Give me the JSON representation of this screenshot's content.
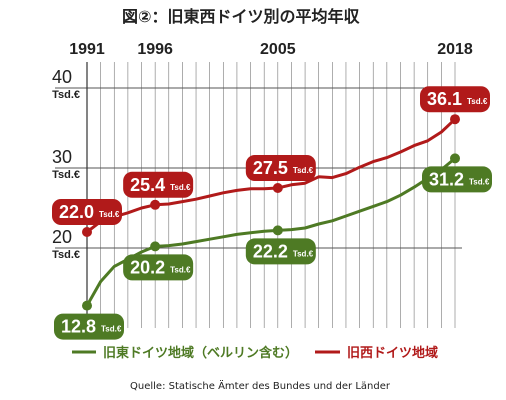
{
  "title": "図②：旧東西ドイツ別の平均年収",
  "source": "Quelle: Statische Ämter des Bundes und der Länder",
  "colors": {
    "west": "#b11a1a",
    "east": "#4e7a24",
    "grid": "#555555"
  },
  "chart_data": {
    "type": "line",
    "title": "図②：旧東西ドイツ別の平均年収",
    "xlim": [
      1991,
      2018
    ],
    "ylim": [
      12,
      40
    ],
    "x_labels": [
      1991,
      1996,
      2005,
      2018
    ],
    "y_ticks": [
      {
        "value": 40,
        "label": "40",
        "unit": "Tsd.€"
      },
      {
        "value": 30,
        "label": "30",
        "unit": "Tsd.€"
      },
      {
        "value": 20,
        "label": "20",
        "unit": "Tsd.€"
      }
    ],
    "legend_position": "bottom",
    "series": [
      {
        "name": "旧西ドイツ地域",
        "key": "west",
        "points": [
          [
            1991,
            22.0
          ],
          [
            1992,
            23.3
          ],
          [
            1993,
            23.9
          ],
          [
            1994,
            24.4
          ],
          [
            1995,
            25.0
          ],
          [
            1996,
            25.4
          ],
          [
            1997,
            25.5
          ],
          [
            1998,
            25.8
          ],
          [
            1999,
            26.1
          ],
          [
            2000,
            26.5
          ],
          [
            2001,
            26.9
          ],
          [
            2002,
            27.2
          ],
          [
            2003,
            27.4
          ],
          [
            2004,
            27.4
          ],
          [
            2005,
            27.5
          ],
          [
            2006,
            27.9
          ],
          [
            2007,
            28.1
          ],
          [
            2008,
            28.9
          ],
          [
            2009,
            28.8
          ],
          [
            2010,
            29.3
          ],
          [
            2011,
            30.1
          ],
          [
            2012,
            30.8
          ],
          [
            2013,
            31.3
          ],
          [
            2014,
            32.0
          ],
          [
            2015,
            32.8
          ],
          [
            2016,
            33.4
          ],
          [
            2017,
            34.5
          ],
          [
            2018,
            36.1
          ]
        ],
        "labels": [
          {
            "x": 1991,
            "y": 22.0,
            "value": "22.0",
            "unit": "Tsd.€"
          },
          {
            "x": 1996,
            "y": 25.4,
            "value": "25.4",
            "unit": "Tsd.€"
          },
          {
            "x": 2005,
            "y": 27.5,
            "value": "27.5",
            "unit": "Tsd.€"
          },
          {
            "x": 2018,
            "y": 36.1,
            "value": "36.1",
            "unit": "Tsd.€"
          }
        ]
      },
      {
        "name": "旧東ドイツ地域（ベルリン含む）",
        "key": "east",
        "points": [
          [
            1991,
            12.8
          ],
          [
            1992,
            15.8
          ],
          [
            1993,
            17.7
          ],
          [
            1994,
            18.6
          ],
          [
            1995,
            19.5
          ],
          [
            1996,
            20.2
          ],
          [
            1997,
            20.3
          ],
          [
            1998,
            20.5
          ],
          [
            1999,
            20.8
          ],
          [
            2000,
            21.1
          ],
          [
            2001,
            21.4
          ],
          [
            2002,
            21.7
          ],
          [
            2003,
            21.9
          ],
          [
            2004,
            22.1
          ],
          [
            2005,
            22.2
          ],
          [
            2006,
            22.3
          ],
          [
            2007,
            22.5
          ],
          [
            2008,
            23.0
          ],
          [
            2009,
            23.4
          ],
          [
            2010,
            24.0
          ],
          [
            2011,
            24.6
          ],
          [
            2012,
            25.2
          ],
          [
            2013,
            25.8
          ],
          [
            2014,
            26.6
          ],
          [
            2015,
            27.6
          ],
          [
            2016,
            28.7
          ],
          [
            2017,
            29.8
          ],
          [
            2018,
            31.2
          ]
        ],
        "labels": [
          {
            "x": 1991,
            "y": 12.8,
            "value": "12.8",
            "unit": "Tsd.€"
          },
          {
            "x": 1996,
            "y": 20.2,
            "value": "20.2",
            "unit": "Tsd.€"
          },
          {
            "x": 2005,
            "y": 22.2,
            "value": "22.2",
            "unit": "Tsd.€"
          },
          {
            "x": 2018,
            "y": 31.2,
            "value": "31.2",
            "unit": "Tsd.€"
          }
        ]
      }
    ]
  }
}
